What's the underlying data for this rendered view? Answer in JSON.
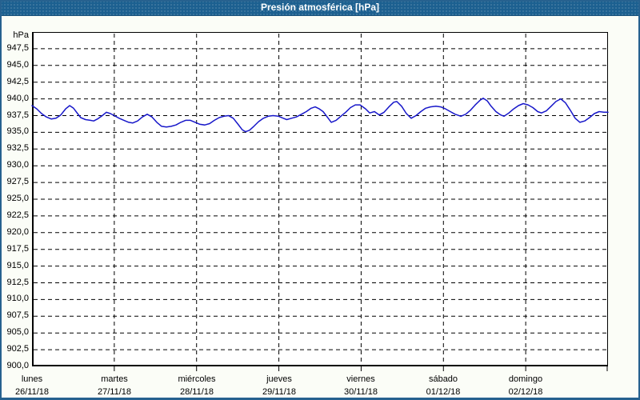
{
  "window": {
    "title": "Presión atmosférica [hPa]"
  },
  "colors": {
    "titlebar": "#1c6090",
    "titlebar_text": "#ffffff",
    "frame_border": "#26618f",
    "page_bg": "#fbfdf7",
    "plot_bg": "#ffffff",
    "grid": "#000000",
    "axis_text": "#000000",
    "line": "#1717c9"
  },
  "chart_data": {
    "type": "line",
    "title": "Presión atmosférica [hPa]",
    "ylabel": "hPa",
    "y_unit_label": "hPa",
    "ylim": [
      900,
      950
    ],
    "y_tick_step": 2.5,
    "grid": "dashed",
    "legend": "none",
    "y_tick_labels": [
      "947,5",
      "945,0",
      "942,5",
      "940,0",
      "937,5",
      "935,0",
      "932,5",
      "930,0",
      "927,5",
      "925,0",
      "922,5",
      "920,0",
      "917,5",
      "915,0",
      "912,5",
      "910,0",
      "907,5",
      "905,0",
      "902,5",
      "900,0"
    ],
    "x_axis": {
      "total_hours": 168,
      "days": [
        {
          "name": "lunes",
          "date": "26/11/18"
        },
        {
          "name": "martes",
          "date": "27/11/18"
        },
        {
          "name": "miércoles",
          "date": "28/11/18"
        },
        {
          "name": "jueves",
          "date": "29/11/18"
        },
        {
          "name": "viernes",
          "date": "30/11/18"
        },
        {
          "name": "sábado",
          "date": "01/12/18"
        },
        {
          "name": "domingo",
          "date": "02/12/18"
        }
      ]
    },
    "series": [
      {
        "name": "Presión atmosférica",
        "color": "#1717c9",
        "points_hours_hpa": [
          [
            0,
            939.0
          ],
          [
            1.4,
            938.5
          ],
          [
            2.8,
            937.8
          ],
          [
            4.2,
            937.3
          ],
          [
            5.6,
            937.0
          ],
          [
            7,
            937.1
          ],
          [
            8.4,
            937.6
          ],
          [
            9.8,
            938.5
          ],
          [
            11,
            939.0
          ],
          [
            12.1,
            938.6
          ],
          [
            13.3,
            937.8
          ],
          [
            14.2,
            937.2
          ],
          [
            15.6,
            936.9
          ],
          [
            17,
            936.8
          ],
          [
            18,
            936.7
          ],
          [
            19.1,
            937.0
          ],
          [
            20.5,
            937.5
          ],
          [
            21.7,
            938.0
          ],
          [
            22.9,
            937.8
          ],
          [
            24,
            937.5
          ],
          [
            25.4,
            937.1
          ],
          [
            26.8,
            936.8
          ],
          [
            28.2,
            936.5
          ],
          [
            29.4,
            936.4
          ],
          [
            30.8,
            936.7
          ],
          [
            32.2,
            937.3
          ],
          [
            33.6,
            937.7
          ],
          [
            35,
            937.3
          ],
          [
            36.4,
            936.5
          ],
          [
            37.8,
            935.9
          ],
          [
            39.2,
            935.8
          ],
          [
            40.6,
            935.9
          ],
          [
            42,
            936.1
          ],
          [
            43.4,
            936.5
          ],
          [
            44.8,
            936.8
          ],
          [
            46.2,
            936.8
          ],
          [
            47.6,
            936.5
          ],
          [
            49,
            936.2
          ],
          [
            50.4,
            936.1
          ],
          [
            51.8,
            936.3
          ],
          [
            53.2,
            936.8
          ],
          [
            54.6,
            937.2
          ],
          [
            56,
            937.4
          ],
          [
            57.3,
            937.5
          ],
          [
            58.7,
            937.1
          ],
          [
            60.1,
            936.2
          ],
          [
            61.3,
            935.4
          ],
          [
            62.3,
            935.1
          ],
          [
            63.4,
            935.3
          ],
          [
            64.7,
            935.9
          ],
          [
            66.1,
            936.6
          ],
          [
            67.5,
            937.1
          ],
          [
            68.9,
            937.4
          ],
          [
            70.3,
            937.5
          ],
          [
            71.9,
            937.4
          ],
          [
            73.3,
            937.1
          ],
          [
            74.3,
            936.9
          ],
          [
            75.7,
            937.1
          ],
          [
            77.1,
            937.3
          ],
          [
            78.6,
            937.7
          ],
          [
            80,
            938.1
          ],
          [
            81.4,
            938.6
          ],
          [
            82.6,
            938.8
          ],
          [
            83.8,
            938.5
          ],
          [
            84.9,
            938.1
          ],
          [
            86.1,
            937.3
          ],
          [
            87.3,
            936.5
          ],
          [
            88.7,
            936.8
          ],
          [
            90.1,
            937.4
          ],
          [
            91.5,
            938.0
          ],
          [
            92.9,
            938.7
          ],
          [
            94.3,
            939.1
          ],
          [
            95.7,
            939.1
          ],
          [
            97.3,
            938.5
          ],
          [
            98.5,
            937.9
          ],
          [
            99.9,
            938.1
          ],
          [
            101.3,
            937.6
          ],
          [
            102.7,
            938.0
          ],
          [
            104.1,
            938.8
          ],
          [
            105.5,
            939.5
          ],
          [
            106.4,
            939.6
          ],
          [
            107.8,
            938.9
          ],
          [
            109.2,
            937.8
          ],
          [
            110.6,
            937.1
          ],
          [
            112,
            937.5
          ],
          [
            113.4,
            938.1
          ],
          [
            114.8,
            938.6
          ],
          [
            116.2,
            938.8
          ],
          [
            117.8,
            938.9
          ],
          [
            119.2,
            938.8
          ],
          [
            120.6,
            938.5
          ],
          [
            122,
            938.1
          ],
          [
            123.4,
            937.7
          ],
          [
            125.1,
            937.4
          ],
          [
            126.5,
            937.7
          ],
          [
            127.9,
            938.3
          ],
          [
            129.3,
            939.1
          ],
          [
            130.7,
            939.8
          ],
          [
            131.6,
            940.1
          ],
          [
            132.8,
            939.7
          ],
          [
            133.9,
            938.9
          ],
          [
            135.3,
            938.1
          ],
          [
            136.7,
            937.6
          ],
          [
            137.7,
            937.4
          ],
          [
            139.1,
            937.9
          ],
          [
            140.5,
            938.5
          ],
          [
            141.9,
            939.0
          ],
          [
            143.3,
            939.3
          ],
          [
            144.7,
            939.1
          ],
          [
            146.1,
            938.7
          ],
          [
            147.5,
            938.1
          ],
          [
            148.6,
            937.9
          ],
          [
            150,
            938.2
          ],
          [
            151.4,
            938.9
          ],
          [
            152.8,
            939.6
          ],
          [
            154.2,
            940.0
          ],
          [
            155.6,
            939.4
          ],
          [
            157,
            938.3
          ],
          [
            158.4,
            937.1
          ],
          [
            159.8,
            936.5
          ],
          [
            161.2,
            936.7
          ],
          [
            162.6,
            937.2
          ],
          [
            164,
            937.8
          ],
          [
            165.4,
            938.1
          ],
          [
            166.8,
            938.0
          ],
          [
            168,
            938.0
          ]
        ]
      }
    ]
  }
}
